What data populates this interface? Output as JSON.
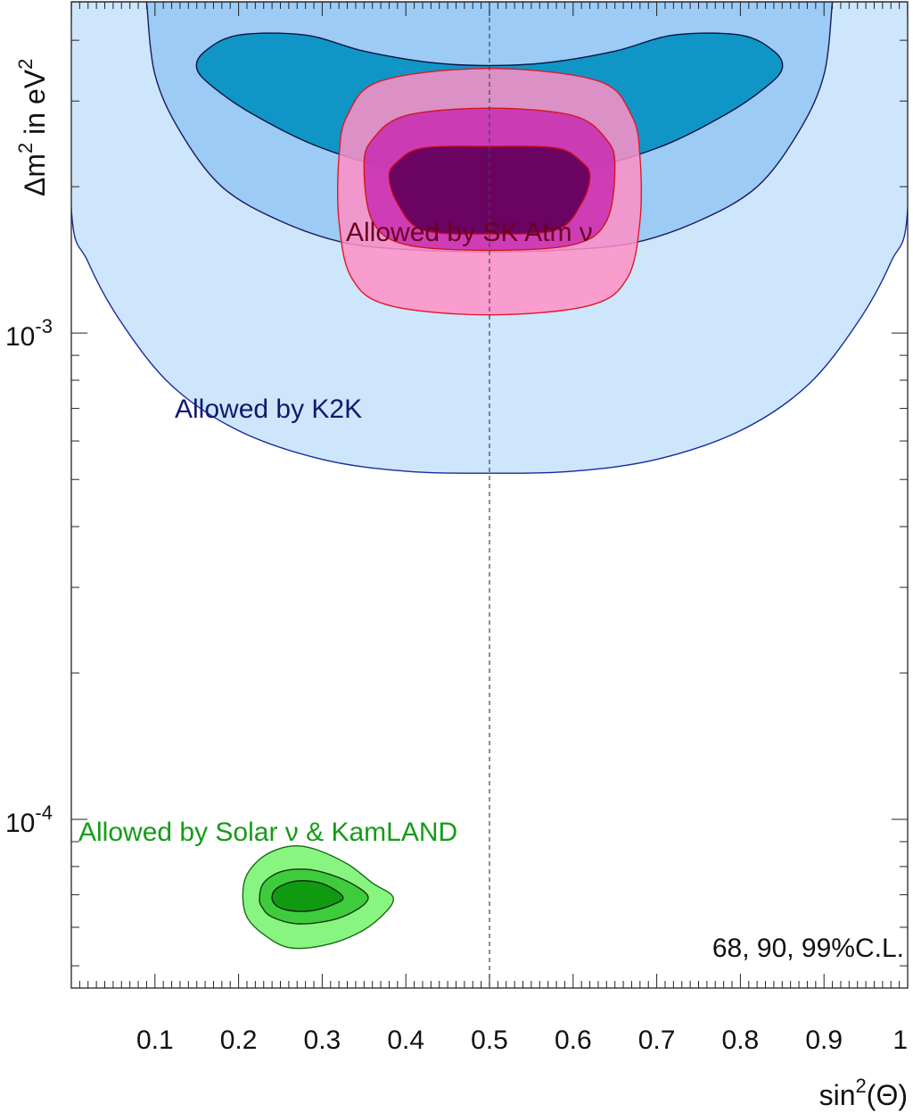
{
  "chart_data": {
    "type": "contour",
    "xlabel": "sin²(Θ)",
    "xlabel_parts": [
      "sin",
      "2",
      "(Θ)"
    ],
    "ylabel": "Δm² in eV²",
    "ylabel_parts": [
      "Δm",
      "2",
      " in eV",
      "2"
    ],
    "xlim": [
      0.0,
      1.0
    ],
    "ylim": [
      4.5e-05,
      0.0048
    ],
    "yscale": "log",
    "x_ticks": [
      0.1,
      0.2,
      0.3,
      0.4,
      0.5,
      0.6,
      0.7,
      0.8,
      0.9,
      1
    ],
    "x_tick_labels": [
      "0.1",
      "0.2",
      "0.3",
      "0.4",
      "0.5",
      "0.6",
      "0.7",
      "0.8",
      "0.9",
      "1"
    ],
    "y_ticks": [
      0.001,
      0.0001
    ],
    "y_tick_labels": [
      {
        "base": "10",
        "exp": "-3"
      },
      {
        "base": "10",
        "exp": "-4"
      }
    ],
    "reference_line": {
      "x": 0.5,
      "style": "dashed"
    },
    "annotation": "68, 90, 99%C.L.",
    "regions": [
      {
        "key": "k2k",
        "label": "Allowed  by K2K",
        "label_color": "#101a6b",
        "levels": [
          {
            "cl": "99%",
            "fill": "#cde6fb",
            "stroke": "#1a2a9e",
            "contour": [
              [
                0.0,
                0.0048
              ],
              [
                0.0,
                0.0018
              ],
              [
                0.02,
                0.0014
              ],
              [
                0.06,
                0.00105
              ],
              [
                0.12,
                0.00078
              ],
              [
                0.2,
                0.00063
              ],
              [
                0.3,
                0.00055
              ],
              [
                0.4,
                0.00052
              ],
              [
                0.5,
                0.000515
              ],
              [
                0.6,
                0.00052
              ],
              [
                0.7,
                0.00055
              ],
              [
                0.8,
                0.00063
              ],
              [
                0.88,
                0.00078
              ],
              [
                0.94,
                0.00105
              ],
              [
                0.98,
                0.0014
              ],
              [
                1.0,
                0.0018
              ],
              [
                1.0,
                0.0048
              ]
            ]
          },
          {
            "cl": "90%",
            "fill": "#9ccbf5",
            "stroke": "#1a1a60",
            "contour": [
              [
                0.09,
                0.0048
              ],
              [
                0.1,
                0.0034
              ],
              [
                0.13,
                0.0026
              ],
              [
                0.18,
                0.002
              ],
              [
                0.25,
                0.0017
              ],
              [
                0.33,
                0.00153
              ],
              [
                0.42,
                0.00148
              ],
              [
                0.5,
                0.00147
              ],
              [
                0.58,
                0.00148
              ],
              [
                0.67,
                0.00153
              ],
              [
                0.75,
                0.0017
              ],
              [
                0.82,
                0.002
              ],
              [
                0.87,
                0.0026
              ],
              [
                0.9,
                0.0034
              ],
              [
                0.91,
                0.0048
              ]
            ]
          },
          {
            "cl": "68%",
            "fill": "#0f96c7",
            "stroke": "#0d1240",
            "contour": [
              [
                0.15,
                0.0035
              ],
              [
                0.16,
                0.0038
              ],
              [
                0.2,
                0.0041
              ],
              [
                0.28,
                0.0041
              ],
              [
                0.35,
                0.0038
              ],
              [
                0.43,
                0.0036
              ],
              [
                0.5,
                0.00355
              ],
              [
                0.57,
                0.0036
              ],
              [
                0.65,
                0.0038
              ],
              [
                0.72,
                0.0041
              ],
              [
                0.8,
                0.0041
              ],
              [
                0.84,
                0.0038
              ],
              [
                0.85,
                0.0035
              ],
              [
                0.83,
                0.0032
              ],
              [
                0.78,
                0.0028
              ],
              [
                0.7,
                0.0024
              ],
              [
                0.6,
                0.00215
              ],
              [
                0.5,
                0.0021
              ],
              [
                0.4,
                0.00215
              ],
              [
                0.3,
                0.0024
              ],
              [
                0.22,
                0.0028
              ],
              [
                0.17,
                0.0032
              ]
            ]
          }
        ]
      },
      {
        "key": "sk",
        "label": "Allowed  by SK Atm ν",
        "label_color": "#6b0020",
        "levels": [
          {
            "cl": "99%",
            "fill": "#ff8fc6",
            "stroke": "#e0182a",
            "opacity": 0.85,
            "contour": [
              [
                0.32,
                0.0023
              ],
              [
                0.32,
                0.0017
              ],
              [
                0.335,
                0.0013
              ],
              [
                0.38,
                0.00114
              ],
              [
                0.5,
                0.00109
              ],
              [
                0.62,
                0.00114
              ],
              [
                0.665,
                0.0013
              ],
              [
                0.68,
                0.0017
              ],
              [
                0.68,
                0.0023
              ],
              [
                0.67,
                0.0028
              ],
              [
                0.63,
                0.0033
              ],
              [
                0.5,
                0.0035
              ],
              [
                0.37,
                0.0033
              ],
              [
                0.33,
                0.0028
              ]
            ]
          },
          {
            "cl": "90%",
            "fill": "#c82db0",
            "stroke": "#d4141e",
            "opacity": 0.85,
            "contour": [
              [
                0.35,
                0.0022
              ],
              [
                0.36,
                0.0017
              ],
              [
                0.4,
                0.00152
              ],
              [
                0.5,
                0.00148
              ],
              [
                0.6,
                0.00152
              ],
              [
                0.64,
                0.0017
              ],
              [
                0.65,
                0.0022
              ],
              [
                0.64,
                0.0025
              ],
              [
                0.6,
                0.0028
              ],
              [
                0.5,
                0.0029
              ],
              [
                0.4,
                0.0028
              ],
              [
                0.36,
                0.0025
              ]
            ]
          },
          {
            "cl": "68%",
            "fill": "#65005e",
            "stroke": "#c20a1c",
            "opacity": 0.95,
            "contour": [
              [
                0.38,
                0.0021
              ],
              [
                0.39,
                0.00185
              ],
              [
                0.42,
                0.00163
              ],
              [
                0.5,
                0.0016
              ],
              [
                0.58,
                0.00163
              ],
              [
                0.61,
                0.00185
              ],
              [
                0.62,
                0.0021
              ],
              [
                0.61,
                0.00225
              ],
              [
                0.58,
                0.0024
              ],
              [
                0.5,
                0.00242
              ],
              [
                0.42,
                0.0024
              ],
              [
                0.39,
                0.00225
              ]
            ]
          }
        ]
      },
      {
        "key": "solar",
        "label": "Allowed  by Solar ν & KamLAND",
        "label_color": "#159b17",
        "levels": [
          {
            "cl": "99%",
            "fill": "#88f580",
            "stroke": "#1a6a1a",
            "contour": [
              [
                0.205,
                7e-05
              ],
              [
                0.21,
                7.7e-05
              ],
              [
                0.23,
                8.4e-05
              ],
              [
                0.26,
                8.8e-05
              ],
              [
                0.29,
                8.7e-05
              ],
              [
                0.33,
                8.1e-05
              ],
              [
                0.36,
                7.4e-05
              ],
              [
                0.385,
                6.9e-05
              ],
              [
                0.37,
                6.3e-05
              ],
              [
                0.34,
                5.8e-05
              ],
              [
                0.3,
                5.5e-05
              ],
              [
                0.26,
                5.45e-05
              ],
              [
                0.23,
                5.8e-05
              ],
              [
                0.21,
                6.3e-05
              ]
            ]
          },
          {
            "cl": "90%",
            "fill": "#3fcc3c",
            "stroke": "#163a16",
            "contour": [
              [
                0.225,
                6.9e-05
              ],
              [
                0.23,
                7.4e-05
              ],
              [
                0.25,
                7.8e-05
              ],
              [
                0.28,
                7.9e-05
              ],
              [
                0.31,
                7.7e-05
              ],
              [
                0.34,
                7.3e-05
              ],
              [
                0.355,
                6.9e-05
              ],
              [
                0.34,
                6.5e-05
              ],
              [
                0.31,
                6.2e-05
              ],
              [
                0.27,
                6.1e-05
              ],
              [
                0.24,
                6.3e-05
              ],
              [
                0.228,
                6.6e-05
              ]
            ]
          },
          {
            "cl": "68%",
            "fill": "#0f9a12",
            "stroke": "#0c260c",
            "contour": [
              [
                0.24,
                6.9e-05
              ],
              [
                0.245,
                7.2e-05
              ],
              [
                0.265,
                7.45e-05
              ],
              [
                0.29,
                7.45e-05
              ],
              [
                0.31,
                7.25e-05
              ],
              [
                0.325,
                6.9e-05
              ],
              [
                0.31,
                6.65e-05
              ],
              [
                0.285,
                6.48e-05
              ],
              [
                0.26,
                6.5e-05
              ],
              [
                0.245,
                6.65e-05
              ]
            ]
          }
        ]
      }
    ]
  }
}
